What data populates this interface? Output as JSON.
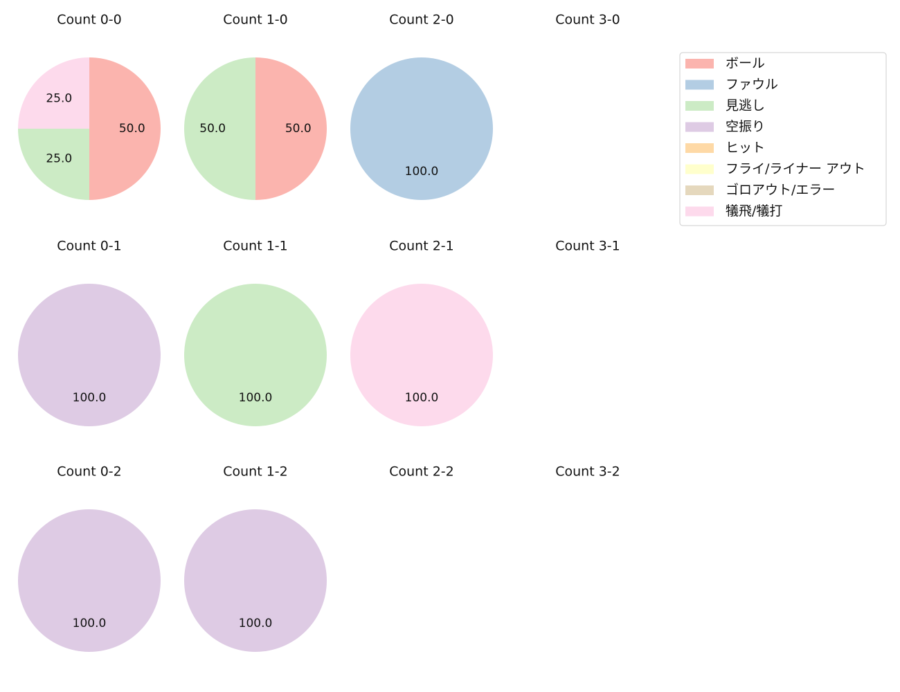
{
  "chart_data": {
    "type": "pie",
    "categories": [
      "ボール",
      "ファウル",
      "見逃し",
      "空振り",
      "ヒット",
      "フライ/ライナー アウト",
      "ゴロアウト/エラー",
      "犠飛/犠打"
    ],
    "colors": [
      "#fbb4ae",
      "#b3cde3",
      "#ccebc5",
      "#decbe4",
      "#fed9a6",
      "#ffffcc",
      "#e5d8bd",
      "#fddaec"
    ],
    "legend_position": "top-right",
    "panels": [
      {
        "title": "Count 0-0",
        "values": [
          50.0,
          0,
          0,
          0,
          0,
          0,
          0,
          0
        ],
        "extra": [
          [
            2,
            25.0
          ],
          [
            7,
            25.0
          ]
        ]
      },
      {
        "title": "Count 1-0",
        "values": [
          50.0,
          0,
          50.0,
          0,
          0,
          0,
          0,
          0
        ]
      },
      {
        "title": "Count 2-0",
        "values": [
          0,
          100.0,
          0,
          0,
          0,
          0,
          0,
          0
        ]
      },
      {
        "title": "Count 3-0",
        "values": []
      },
      {
        "title": "Count 0-1",
        "values": [
          0,
          0,
          0,
          100.0,
          0,
          0,
          0,
          0
        ]
      },
      {
        "title": "Count 1-1",
        "values": [
          0,
          0,
          100.0,
          0,
          0,
          0,
          0,
          0
        ]
      },
      {
        "title": "Count 2-1",
        "values": [
          0,
          0,
          0,
          0,
          0,
          0,
          0,
          100.0
        ]
      },
      {
        "title": "Count 3-1",
        "values": []
      },
      {
        "title": "Count 0-2",
        "values": [
          0,
          0,
          0,
          100.0,
          0,
          0,
          0,
          0
        ]
      },
      {
        "title": "Count 1-2",
        "values": [
          0,
          0,
          0,
          100.0,
          0,
          0,
          0,
          0
        ]
      },
      {
        "title": "Count 2-2",
        "values": []
      },
      {
        "title": "Count 3-2",
        "values": []
      }
    ]
  }
}
